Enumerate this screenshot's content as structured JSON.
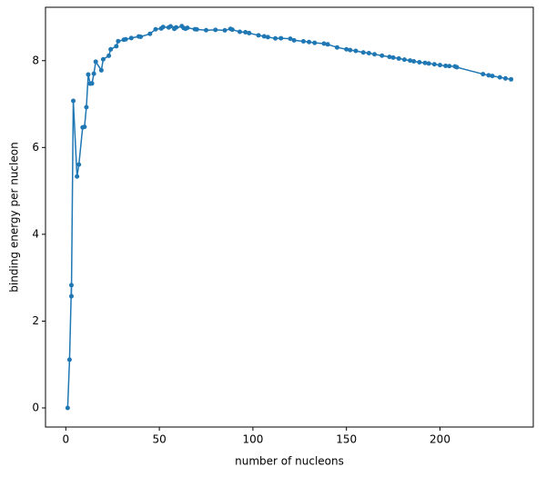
{
  "chart_data": {
    "type": "line",
    "xlabel": "number of nucleons",
    "ylabel": "binding energy per nucleon",
    "color": "#1f77b4",
    "x": [
      1,
      2,
      3,
      3,
      4,
      6,
      7,
      9,
      10,
      11,
      12,
      13,
      14,
      15,
      16,
      19,
      20,
      23,
      24,
      27,
      28,
      31,
      32,
      35,
      39,
      40,
      45,
      48,
      51,
      52,
      55,
      56,
      59,
      58,
      62,
      63,
      64,
      65,
      69,
      70,
      75,
      80,
      85,
      88,
      89,
      93,
      96,
      98,
      103,
      106,
      108,
      112,
      115,
      120,
      122,
      127,
      130,
      133,
      138,
      140,
      145,
      150,
      152,
      155,
      159,
      162,
      165,
      169,
      173,
      175,
      178,
      181,
      184,
      186,
      189,
      192,
      194,
      197,
      200,
      203,
      205,
      208,
      209,
      223,
      226,
      228,
      232,
      235,
      238
    ],
    "values": [
      0,
      1.112,
      2.827,
      2.573,
      7.074,
      5.332,
      5.606,
      6.463,
      6.475,
      6.928,
      7.68,
      7.47,
      7.476,
      7.699,
      7.976,
      7.779,
      8.032,
      8.112,
      8.261,
      8.332,
      8.448,
      8.481,
      8.493,
      8.52,
      8.557,
      8.551,
      8.619,
      8.723,
      8.742,
      8.776,
      8.765,
      8.79,
      8.768,
      8.732,
      8.795,
      8.752,
      8.736,
      8.757,
      8.725,
      8.721,
      8.701,
      8.71,
      8.698,
      8.733,
      8.714,
      8.664,
      8.654,
      8.635,
      8.584,
      8.56,
      8.543,
      8.514,
      8.517,
      8.505,
      8.469,
      8.445,
      8.43,
      8.41,
      8.393,
      8.376,
      8.305,
      8.262,
      8.244,
      8.225,
      8.189,
      8.173,
      8.147,
      8.115,
      8.087,
      8.071,
      8.049,
      8.023,
      8.003,
      7.985,
      7.963,
      7.948,
      7.936,
      7.916,
      7.899,
      7.88,
      7.874,
      7.867,
      7.848,
      7.69,
      7.662,
      7.647,
      7.615,
      7.591,
      7.57
    ],
    "xlim": [
      -10.85,
      249.85
    ],
    "xticks": [
      0,
      50,
      100,
      150,
      200
    ],
    "ylim": [
      -0.44,
      9.23
    ],
    "yticks": [
      0,
      2,
      4,
      6,
      8
    ]
  }
}
